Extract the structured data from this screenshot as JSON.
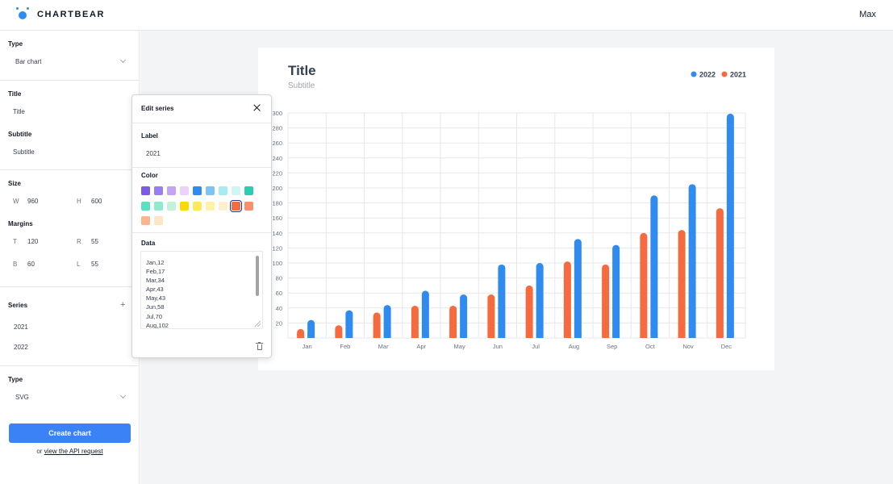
{
  "header": {
    "brand": "CHARTBEAR",
    "user": "Max"
  },
  "sidebar": {
    "type_label": "Type",
    "chart_type": "Bar chart",
    "title_label": "Title",
    "title_value": "Title",
    "subtitle_label": "Subtitle",
    "subtitle_value": "Subtitle",
    "size_label": "Size",
    "width_prefix": "W",
    "width": "960",
    "height_prefix": "H",
    "height": "600",
    "margins_label": "Margins",
    "margin_top_prefix": "T",
    "margin_top": "120",
    "margin_right_prefix": "R",
    "margin_right": "55",
    "margin_bottom_prefix": "B",
    "margin_bottom": "60",
    "margin_left_prefix": "L",
    "margin_left": "55",
    "series_label": "Series",
    "series": [
      "2021",
      "2022"
    ],
    "output_type_label": "Type",
    "output_type": "SVG",
    "create_button": "Create chart",
    "api_prefix": "or",
    "api_link": "view the API request"
  },
  "modal": {
    "title": "Edit series",
    "label_heading": "Label",
    "label_value": "2021",
    "color_heading": "Color",
    "colors": [
      "#7c5ce6",
      "#9a7ef0",
      "#c4a4f4",
      "#ecd2fb",
      "#2f8bf0",
      "#7cc3f6",
      "#a5ecf4",
      "#cff6f4",
      "#2ccdb2",
      "#5ee0c0",
      "#8eeacb",
      "#c2f3da",
      "#fcd808",
      "#fde95b",
      "#fdf2a6",
      "#fdf0cb",
      "#f56a3f",
      "#f98f6b",
      "#fbb48d",
      "#fde6c6"
    ],
    "selected_color_index": 16,
    "data_heading": "Data",
    "data_lines": [
      "Jan,12",
      "Feb,17",
      "Mar,34",
      "Apr,43",
      "May,43",
      "Jun,58",
      "Jul,70",
      "Aug,102"
    ]
  },
  "chart_data": {
    "type": "bar",
    "title": "Title",
    "subtitle": "Subtitle",
    "categories": [
      "Jan",
      "Feb",
      "Mar",
      "Apr",
      "May",
      "Jun",
      "Jul",
      "Aug",
      "Sep",
      "Oct",
      "Nov",
      "Dec"
    ],
    "series": [
      {
        "name": "2021",
        "color": "#f56a3f",
        "values": [
          12,
          17,
          34,
          43,
          43,
          58,
          70,
          102,
          98,
          140,
          144,
          173
        ]
      },
      {
        "name": "2022",
        "color": "#2f8bf0",
        "values": [
          24,
          37,
          44,
          63,
          58,
          98,
          100,
          132,
          124,
          190,
          205,
          299
        ]
      }
    ],
    "ylim": [
      0,
      300
    ],
    "yticks": [
      20,
      40,
      60,
      80,
      100,
      120,
      140,
      160,
      180,
      200,
      220,
      240,
      260,
      280,
      300
    ],
    "legend_order": [
      "2022",
      "2021"
    ],
    "legend": "top-right",
    "grid": true
  }
}
